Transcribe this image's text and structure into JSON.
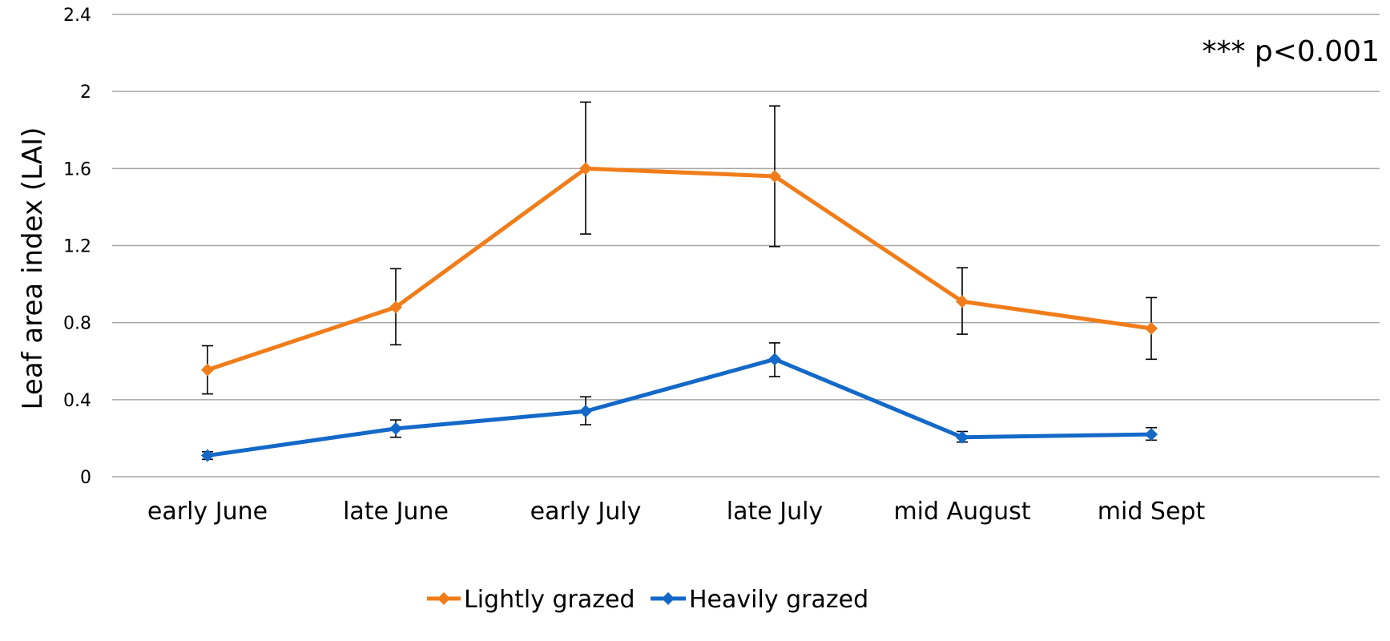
{
  "chart_data": {
    "type": "line",
    "categories": [
      "early June",
      "late June",
      "early July",
      "late July",
      "mid August",
      "mid Sept"
    ],
    "ylabel": "Leaf area index (LAI)",
    "xlabel": "",
    "ylim": [
      0,
      2.4
    ],
    "yticks": [
      0,
      0.4,
      0.8,
      1.2,
      1.6,
      2,
      2.4
    ],
    "ytick_labels": [
      "0",
      "0.4",
      "0.8",
      "1.2",
      "1.6",
      "2",
      "2.4"
    ],
    "grid": true,
    "legend_position": "bottom",
    "annotation": "*** p<0.001",
    "series": [
      {
        "name": "Lightly grazed",
        "color": "#f07d1a",
        "values": [
          0.555,
          0.88,
          1.6,
          1.56,
          0.91,
          0.77
        ],
        "error_low": [
          0.43,
          0.685,
          1.26,
          1.195,
          0.74,
          0.61
        ],
        "error_high": [
          0.68,
          1.08,
          1.945,
          1.925,
          1.085,
          0.93
        ]
      },
      {
        "name": "Heavily grazed",
        "color": "#1469c8",
        "values": [
          0.11,
          0.25,
          0.34,
          0.61,
          0.205,
          0.22
        ],
        "error_low": [
          0.09,
          0.205,
          0.27,
          0.52,
          0.18,
          0.19
        ],
        "error_high": [
          0.13,
          0.295,
          0.415,
          0.695,
          0.235,
          0.255
        ]
      }
    ]
  }
}
